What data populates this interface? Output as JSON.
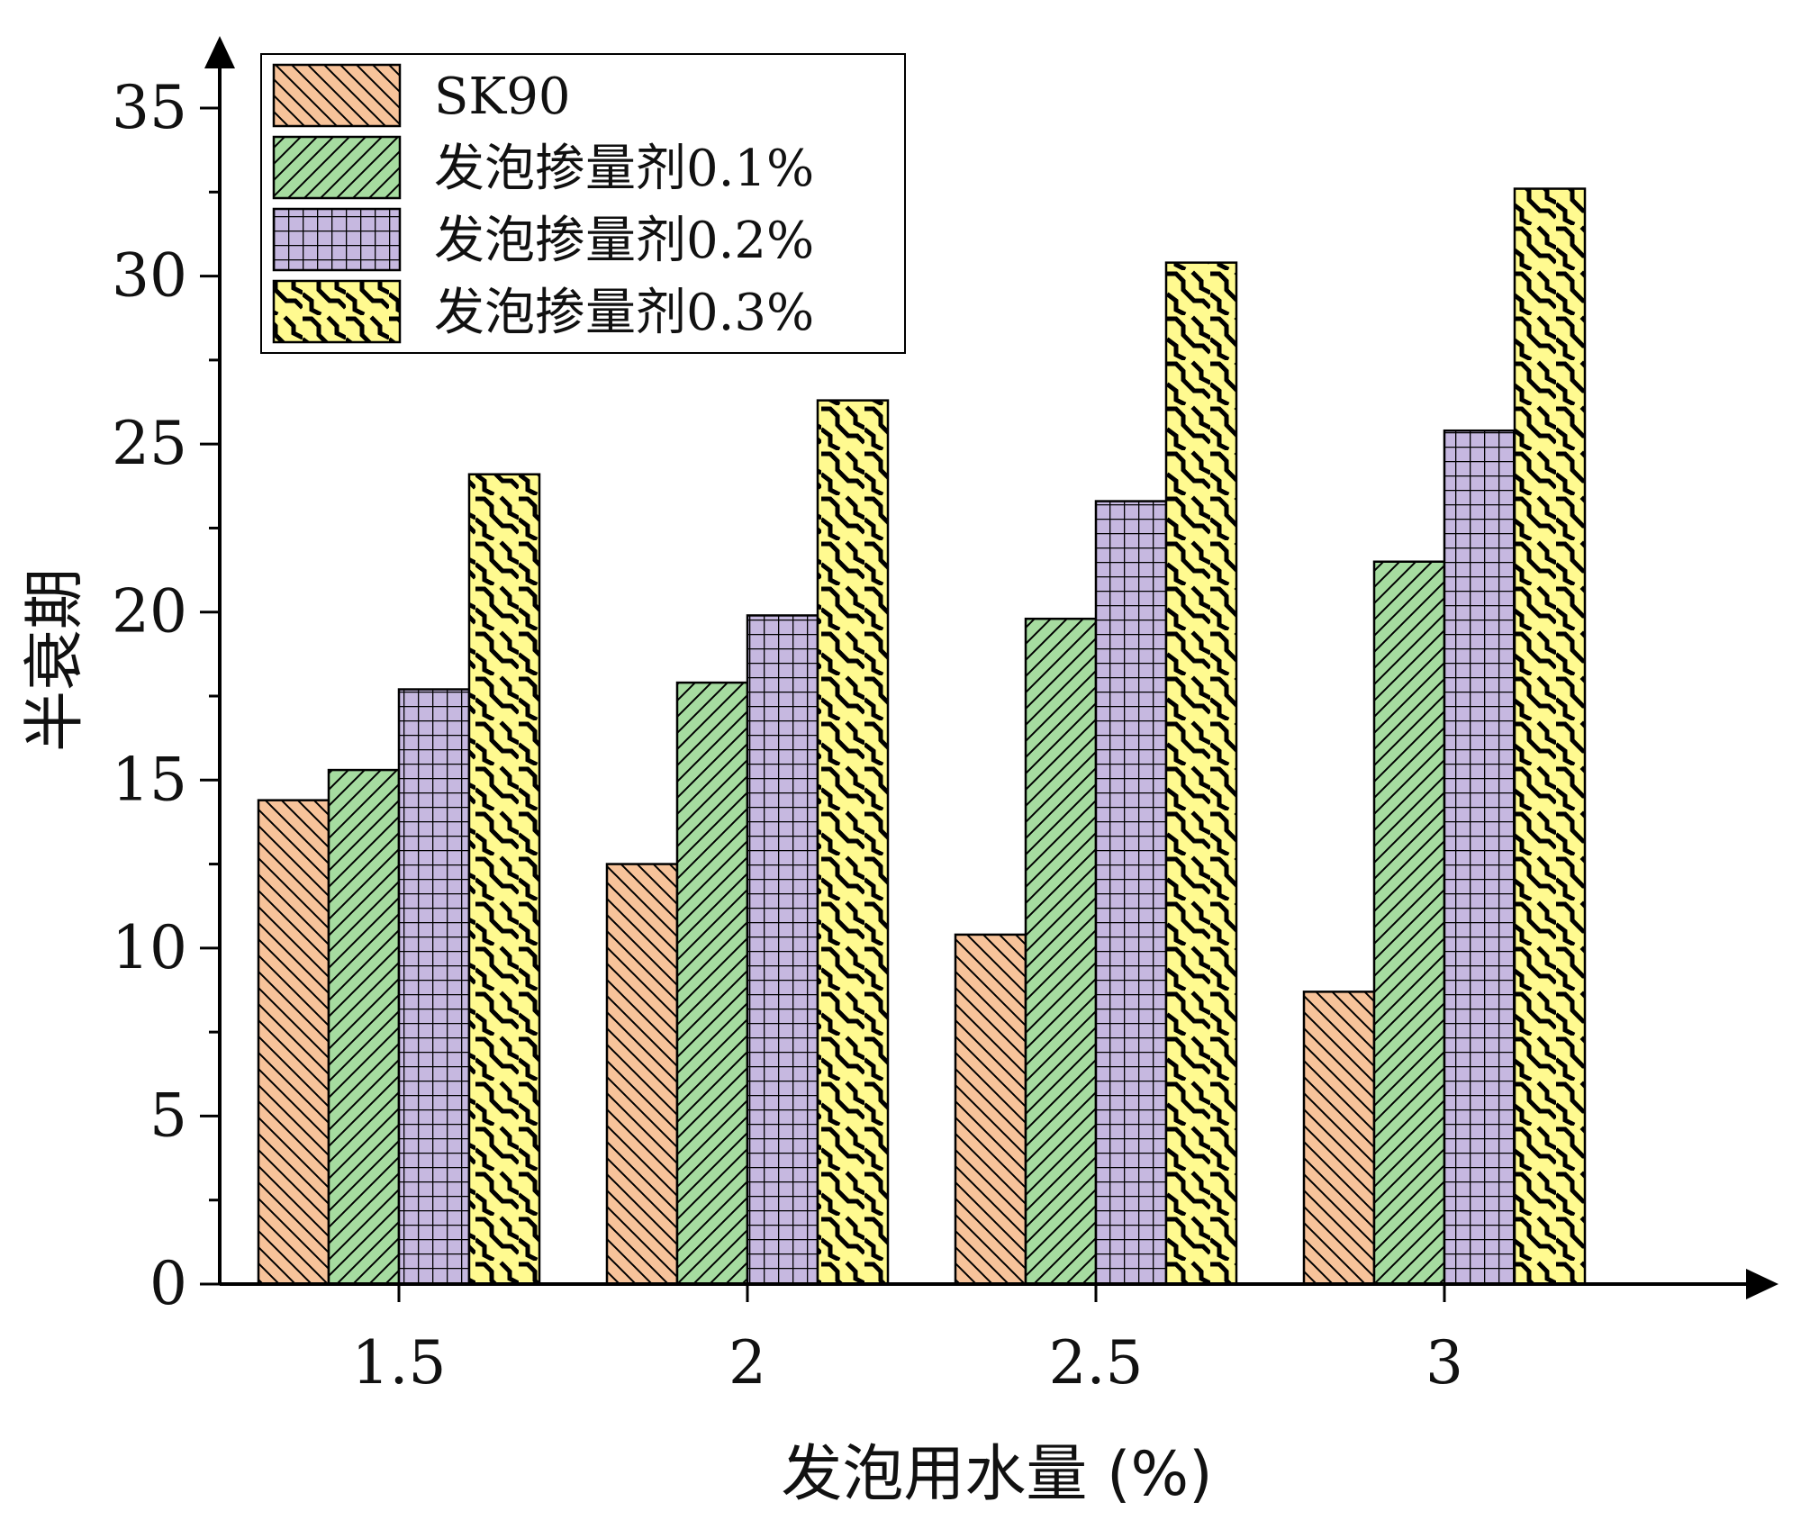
{
  "chart_data": {
    "type": "bar",
    "xlabel": "发泡用水量 (%)",
    "ylabel": "半衰期",
    "categories": [
      "1.5",
      "2",
      "2.5",
      "3"
    ],
    "ylim": [
      0,
      37
    ],
    "yticks": [
      0,
      5,
      10,
      15,
      20,
      25,
      30,
      35
    ],
    "ytick_labels": [
      "0",
      "5",
      "10",
      "15",
      "20",
      "25",
      "30",
      "35"
    ],
    "legend_position": "top-left",
    "grid": false,
    "series": [
      {
        "name": "SK90",
        "values": [
          14.4,
          12.5,
          10.4,
          8.7
        ],
        "color": "#f7c39a",
        "pattern": "backslash-hatch"
      },
      {
        "name": "发泡掺量剂0.1%",
        "values": [
          15.3,
          17.9,
          19.8,
          21.5
        ],
        "color": "#a6dca0",
        "pattern": "slash-hatch"
      },
      {
        "name": "发泡掺量剂0.2%",
        "values": [
          17.7,
          19.9,
          23.3,
          25.4
        ],
        "color": "#c6b8e0",
        "pattern": "grid"
      },
      {
        "name": "发泡掺量剂0.3%",
        "values": [
          24.1,
          26.3,
          30.4,
          32.6
        ],
        "color": "#fffa90",
        "pattern": "wave"
      }
    ]
  }
}
